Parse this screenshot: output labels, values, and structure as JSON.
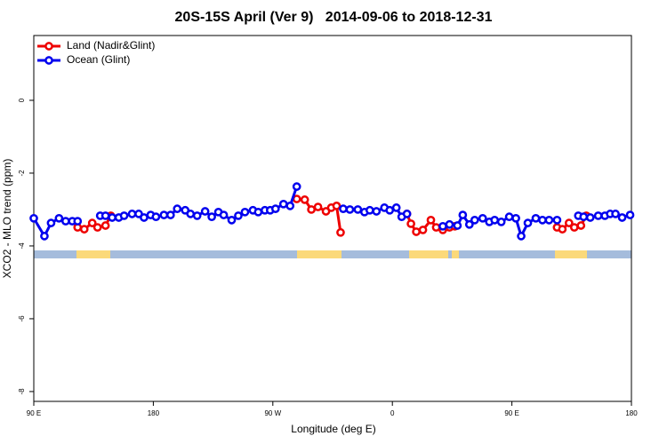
{
  "chart_data": {
    "type": "line",
    "title": "20S-15S April (Ver 9)   2014-09-06 to 2018-12-31",
    "x_label": "Longitude (deg E)",
    "y_label": "XCO2 - MLO trend (ppm)",
    "xlim": [
      90,
      540
    ],
    "ylim": [
      -8.27,
      1.78
    ],
    "xticks": [
      {
        "value": 90,
        "label": "90 E"
      },
      {
        "value": 180,
        "label": "180"
      },
      {
        "value": 270,
        "label": "90 W"
      },
      {
        "value": 360,
        "label": "0"
      },
      {
        "value": 450,
        "label": "90 E"
      },
      {
        "value": 540,
        "label": "180"
      }
    ],
    "yticks": [
      0,
      -2,
      -4,
      -6,
      -8
    ],
    "legend": "top-left",
    "series": [
      {
        "name": "Land (Nadir&Glint)",
        "color": "#ee0000",
        "x": [
          123,
          128,
          134,
          138,
          144,
          148,
          null,
          288,
          294,
          299,
          304,
          310,
          314,
          318,
          321,
          null,
          371,
          374,
          378,
          383,
          389,
          393,
          398,
          403,
          407,
          null,
          484,
          488,
          493,
          497,
          502,
          506
        ],
        "values": [
          -3.49,
          -3.54,
          -3.37,
          -3.49,
          -3.44,
          -3.17,
          null,
          -2.71,
          -2.73,
          -3.0,
          -2.93,
          -3.05,
          -2.95,
          -2.9,
          -3.63,
          null,
          -3.12,
          -3.39,
          -3.61,
          -3.56,
          -3.29,
          -3.49,
          -3.56,
          -3.49,
          -3.46,
          null,
          -3.49,
          -3.54,
          -3.37,
          -3.49,
          -3.44,
          -3.17
        ]
      },
      {
        "name": "Ocean (Glint)",
        "color": "#0000ee",
        "x": [
          90,
          98,
          103,
          109,
          114,
          119,
          123,
          null,
          140,
          144,
          149,
          154,
          158,
          164,
          169,
          173,
          178,
          182,
          188,
          193,
          198,
          204,
          208,
          213,
          219,
          224,
          229,
          233,
          239,
          244,
          249,
          255,
          259,
          264,
          268,
          272,
          278,
          283,
          288,
          null,
          323,
          328,
          334,
          339,
          343,
          348,
          354,
          358,
          363,
          367,
          371,
          null,
          398,
          403,
          409,
          413,
          418,
          422,
          428,
          433,
          437,
          442,
          448,
          453,
          457,
          462,
          468,
          473,
          478,
          484,
          null,
          500,
          504,
          509,
          515,
          520,
          524,
          528,
          533,
          539
        ],
        "values": [
          -3.24,
          -3.73,
          -3.37,
          -3.24,
          -3.32,
          -3.32,
          -3.32,
          null,
          -3.17,
          -3.17,
          -3.22,
          -3.22,
          -3.17,
          -3.12,
          -3.12,
          -3.22,
          -3.15,
          -3.2,
          -3.15,
          -3.15,
          -2.98,
          -3.02,
          -3.12,
          -3.17,
          -3.05,
          -3.2,
          -3.07,
          -3.15,
          -3.29,
          -3.17,
          -3.07,
          -3.02,
          -3.07,
          -3.02,
          -3.02,
          -2.98,
          -2.85,
          -2.9,
          -2.37,
          null,
          -2.98,
          -3.0,
          -3.0,
          -3.07,
          -3.02,
          -3.05,
          -2.95,
          -3.02,
          -2.95,
          -3.2,
          -3.12,
          null,
          -3.46,
          -3.41,
          -3.44,
          -3.15,
          -3.41,
          -3.29,
          -3.24,
          -3.34,
          -3.29,
          -3.34,
          -3.2,
          -3.24,
          -3.73,
          -3.37,
          -3.24,
          -3.29,
          -3.29,
          -3.29,
          null,
          -3.17,
          -3.2,
          -3.22,
          -3.17,
          -3.17,
          -3.12,
          -3.12,
          -3.22,
          -3.15
        ]
      }
    ]
  }
}
